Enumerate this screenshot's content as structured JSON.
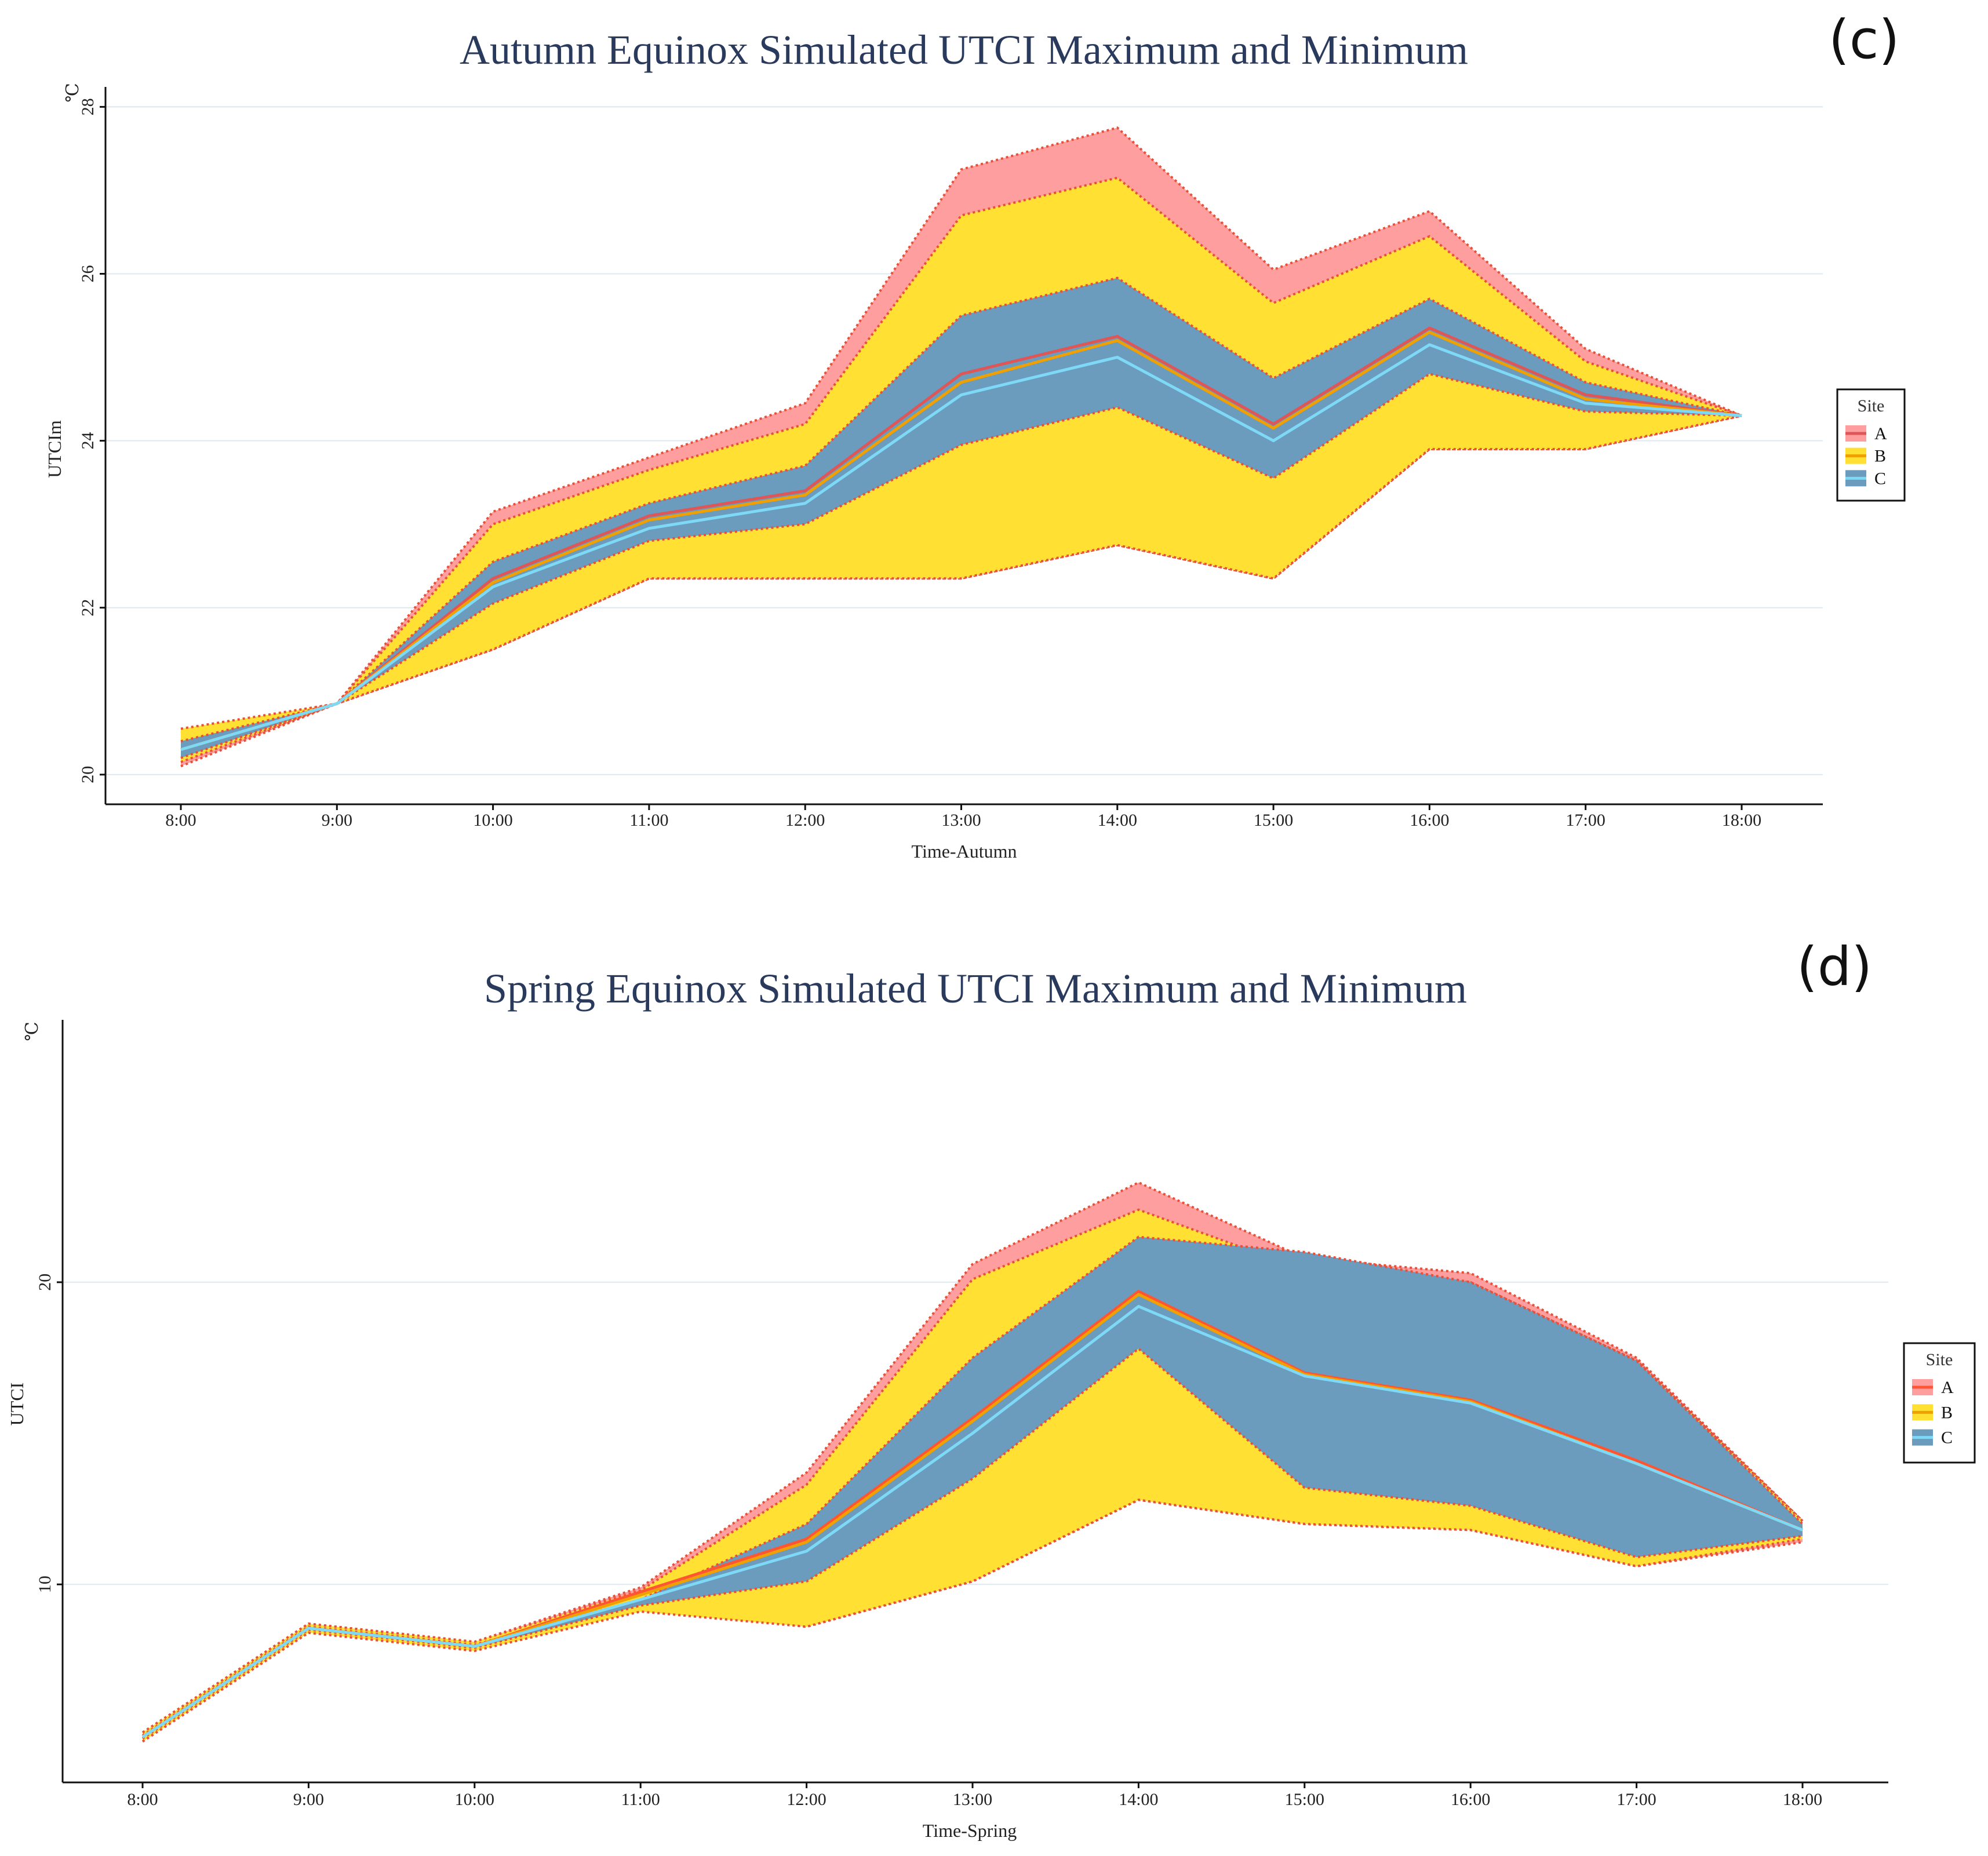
{
  "chart_data": [
    {
      "panel_tag": "(c)",
      "type": "area",
      "title": "Autumn Equinox Simulated UTCI Maximum and Minimum",
      "xlabel": "Time-Autumn",
      "ylabel": "UTCIm",
      "unit": "℃",
      "categories": [
        "8:00",
        "9:00",
        "10:00",
        "11:00",
        "12:00",
        "13:00",
        "14:00",
        "15:00",
        "16:00",
        "17:00",
        "18:00"
      ],
      "ylim": [
        19.7,
        28.1
      ],
      "yticks": [
        20,
        22,
        24,
        26,
        28
      ],
      "grid": true,
      "legend": {
        "title": "Site",
        "position": "right",
        "entries": [
          "A",
          "B",
          "C"
        ]
      },
      "series": [
        {
          "name": "A",
          "fill": "#ff9e9e",
          "line": "#e05555",
          "max": [
            20.5,
            20.85,
            23.15,
            23.8,
            24.45,
            27.25,
            27.75,
            26.05,
            26.75,
            25.1,
            24.3
          ],
          "min": [
            20.1,
            20.85,
            21.5,
            22.35,
            22.35,
            22.35,
            22.75,
            22.35,
            23.9,
            23.9,
            24.3
          ],
          "mean": [
            20.3,
            20.85,
            22.35,
            23.1,
            23.4,
            24.8,
            25.25,
            24.2,
            25.35,
            24.55,
            24.3
          ]
        },
        {
          "name": "B",
          "fill": "#ffe033",
          "line": "#f0a000",
          "max": [
            20.55,
            20.85,
            23.0,
            23.65,
            24.2,
            26.7,
            27.15,
            25.65,
            26.45,
            24.95,
            24.3
          ],
          "min": [
            20.15,
            20.85,
            21.5,
            22.35,
            22.35,
            22.35,
            22.75,
            22.35,
            23.9,
            23.9,
            24.3
          ],
          "mean": [
            20.3,
            20.85,
            22.3,
            23.05,
            23.35,
            24.7,
            25.2,
            24.15,
            25.3,
            24.5,
            24.3
          ]
        },
        {
          "name": "C",
          "fill": "#6b9bbd",
          "line": "#7ed9f7",
          "max": [
            20.4,
            20.85,
            22.55,
            23.25,
            23.7,
            25.5,
            25.95,
            24.75,
            25.7,
            24.7,
            24.3
          ],
          "min": [
            20.2,
            20.85,
            22.05,
            22.8,
            23.0,
            23.95,
            24.4,
            23.55,
            24.8,
            24.35,
            24.3
          ],
          "mean": [
            20.3,
            20.85,
            22.25,
            22.95,
            23.25,
            24.55,
            25.0,
            24.0,
            25.15,
            24.45,
            24.3
          ]
        }
      ]
    },
    {
      "panel_tag": "(d)",
      "type": "area",
      "title": "Spring Equinox Simulated UTCI Maximum and Minimum",
      "xlabel": "Time-Spring",
      "ylabel": "UTCI",
      "unit": "℃",
      "categories": [
        "8:00",
        "9:00",
        "10:00",
        "11:00",
        "12:00",
        "13:00",
        "14:00",
        "15:00",
        "16:00",
        "17:00",
        "18:00"
      ],
      "ylim": [
        3.6,
        28.3
      ],
      "yticks": [
        10,
        20
      ],
      "grid": true,
      "legend": {
        "title": "Site",
        "position": "right",
        "entries": [
          "A",
          "B",
          "C"
        ]
      },
      "series": [
        {
          "name": "A",
          "fill": "#ff9e9e",
          "line": "#ff5533",
          "max": [
            5.1,
            8.7,
            8.1,
            9.9,
            13.7,
            20.6,
            23.3,
            20.8,
            20.3,
            17.5,
            12.1
          ],
          "min": [
            4.8,
            8.4,
            7.8,
            9.5,
            8.6,
            10.1,
            12.8,
            12.0,
            11.8,
            10.6,
            11.4
          ],
          "mean": [
            4.95,
            8.55,
            7.95,
            9.75,
            11.5,
            15.5,
            19.7,
            17.0,
            16.1,
            14.1,
            11.8
          ]
        },
        {
          "name": "B",
          "fill": "#ffe033",
          "line": "#f0a000",
          "max": [
            5.1,
            8.7,
            8.1,
            9.8,
            13.3,
            20.1,
            22.4,
            20.4,
            20.0,
            17.4,
            12.1
          ],
          "min": [
            4.8,
            8.4,
            7.8,
            9.1,
            8.6,
            10.1,
            12.8,
            12.0,
            11.8,
            10.6,
            11.5
          ],
          "mean": [
            4.95,
            8.55,
            7.95,
            9.65,
            11.4,
            15.4,
            19.6,
            16.95,
            16.05,
            14.0,
            11.8
          ]
        },
        {
          "name": "C",
          "fill": "#6b9bbd",
          "line": "#7ed9f7",
          "max": [
            5.0,
            8.6,
            8.0,
            9.5,
            12.0,
            17.5,
            21.5,
            21.0,
            20.0,
            17.4,
            12.0
          ],
          "min": [
            4.9,
            8.5,
            7.9,
            9.3,
            10.1,
            13.5,
            17.8,
            13.2,
            12.6,
            10.9,
            11.6
          ],
          "mean": [
            4.95,
            8.55,
            7.95,
            9.5,
            11.1,
            15.0,
            19.2,
            16.9,
            16.0,
            14.0,
            11.8
          ]
        }
      ]
    }
  ]
}
